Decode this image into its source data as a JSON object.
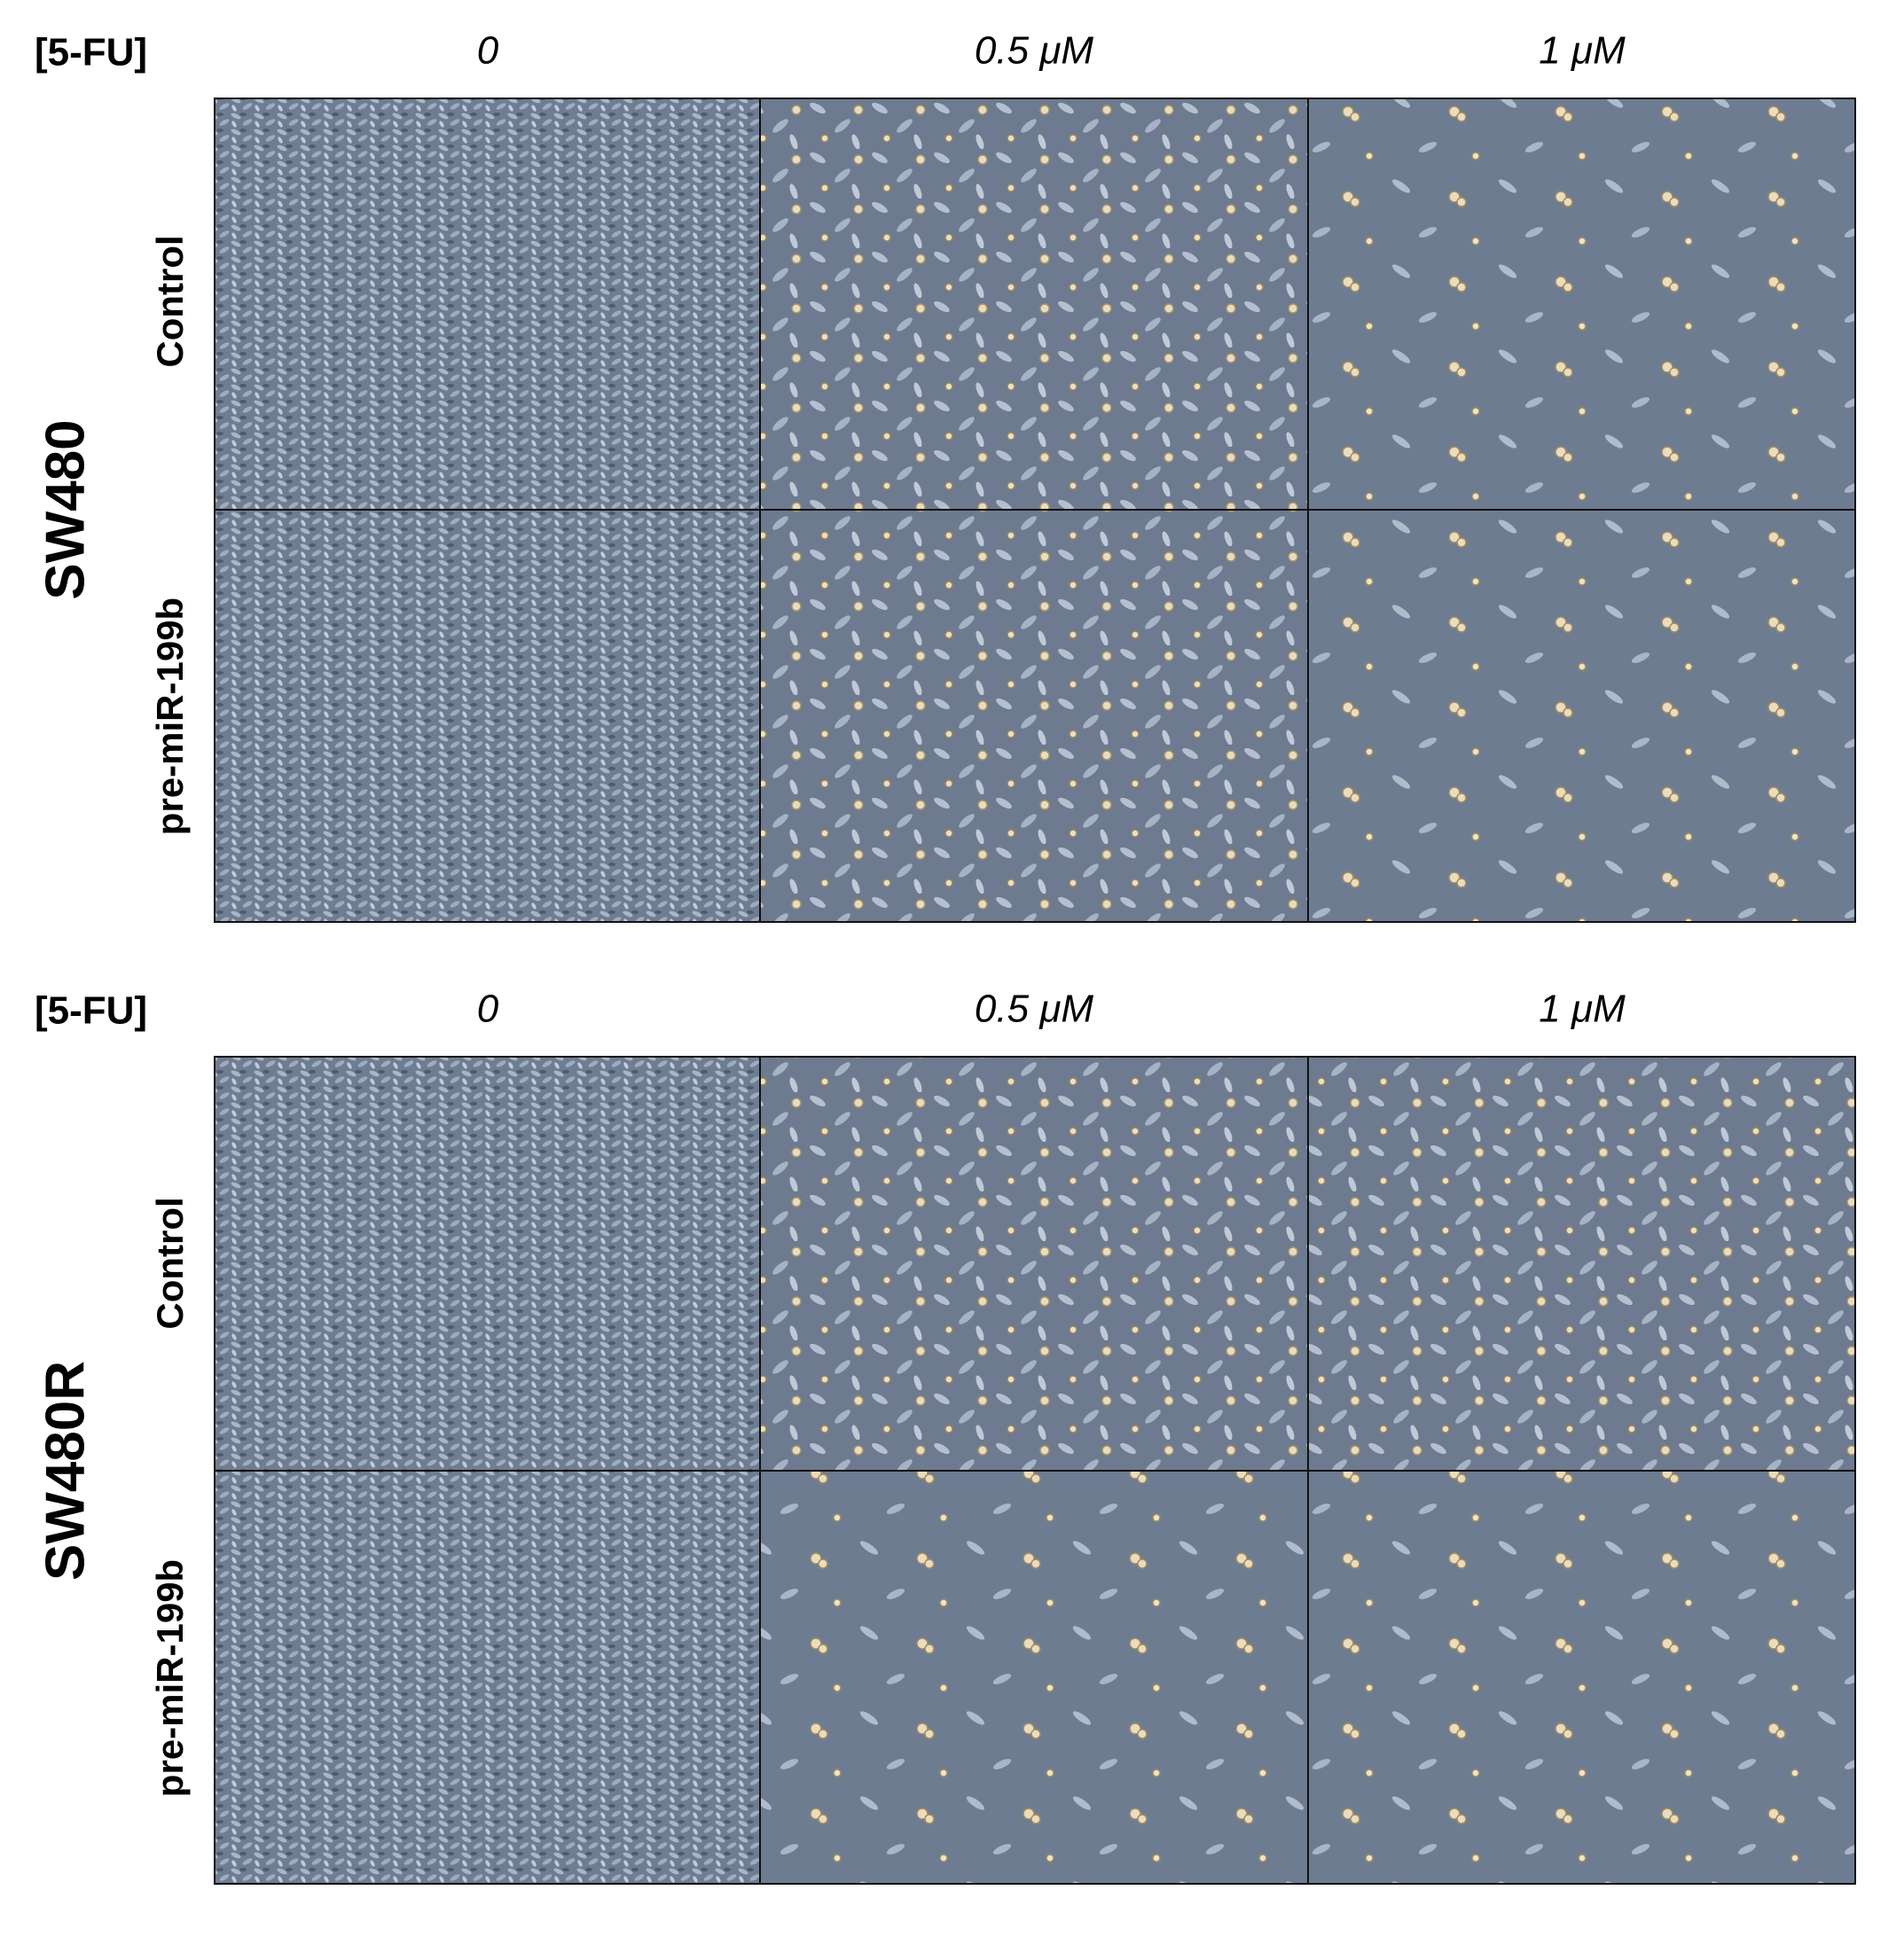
{
  "panels": [
    {
      "cell_line": "SW480",
      "treatment_label": "[5-FU]",
      "concentrations": [
        "0",
        "0.5 μM",
        "1 μM"
      ],
      "rows": [
        "Control",
        "pre-miR-199b"
      ]
    },
    {
      "cell_line": "SW480R",
      "treatment_label": "[5-FU]",
      "concentrations": [
        "0",
        "0.5 μM",
        "1 μM"
      ],
      "rows": [
        "Control",
        "pre-miR-199b"
      ]
    }
  ]
}
